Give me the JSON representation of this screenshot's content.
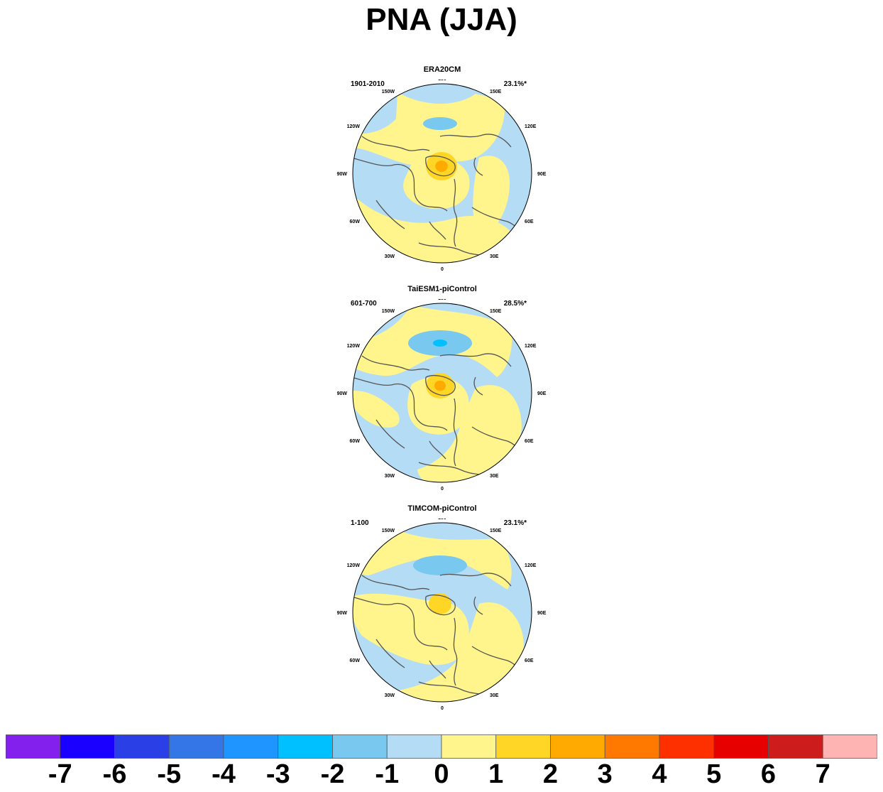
{
  "title": "PNA (JJA)",
  "chart_data": {
    "type": "heatmap",
    "projection": "north polar stereographic",
    "longitude_labels": [
      "180",
      "150E",
      "120E",
      "90E",
      "60E",
      "30E",
      "0",
      "30W",
      "60W",
      "90W",
      "120W",
      "150W"
    ],
    "panels": [
      {
        "title": "ERA20CM",
        "period": "1901-2010",
        "variance": "23.1%*"
      },
      {
        "title": "TaiESM1-piControl",
        "period": "601-700",
        "variance": "28.5%*"
      },
      {
        "title": "TIMCOM-piControl",
        "period": "1-100",
        "variance": "23.1%*"
      }
    ],
    "colorbar": {
      "colors": [
        "#8420ee",
        "#1a00ff",
        "#2b3fe6",
        "#3476e6",
        "#1f96ff",
        "#00c0ff",
        "#78c8f0",
        "#b4dcf4",
        "#fff58c",
        "#ffd626",
        "#ffaa00",
        "#ff7800",
        "#ff3000",
        "#e60000",
        "#cc1c1c",
        "#ffb4b4"
      ],
      "labels": [
        "-7",
        "-6",
        "-5",
        "-4",
        "-3",
        "-2",
        "-1",
        "0",
        "1",
        "2",
        "3",
        "4",
        "5",
        "6",
        "7"
      ]
    }
  }
}
